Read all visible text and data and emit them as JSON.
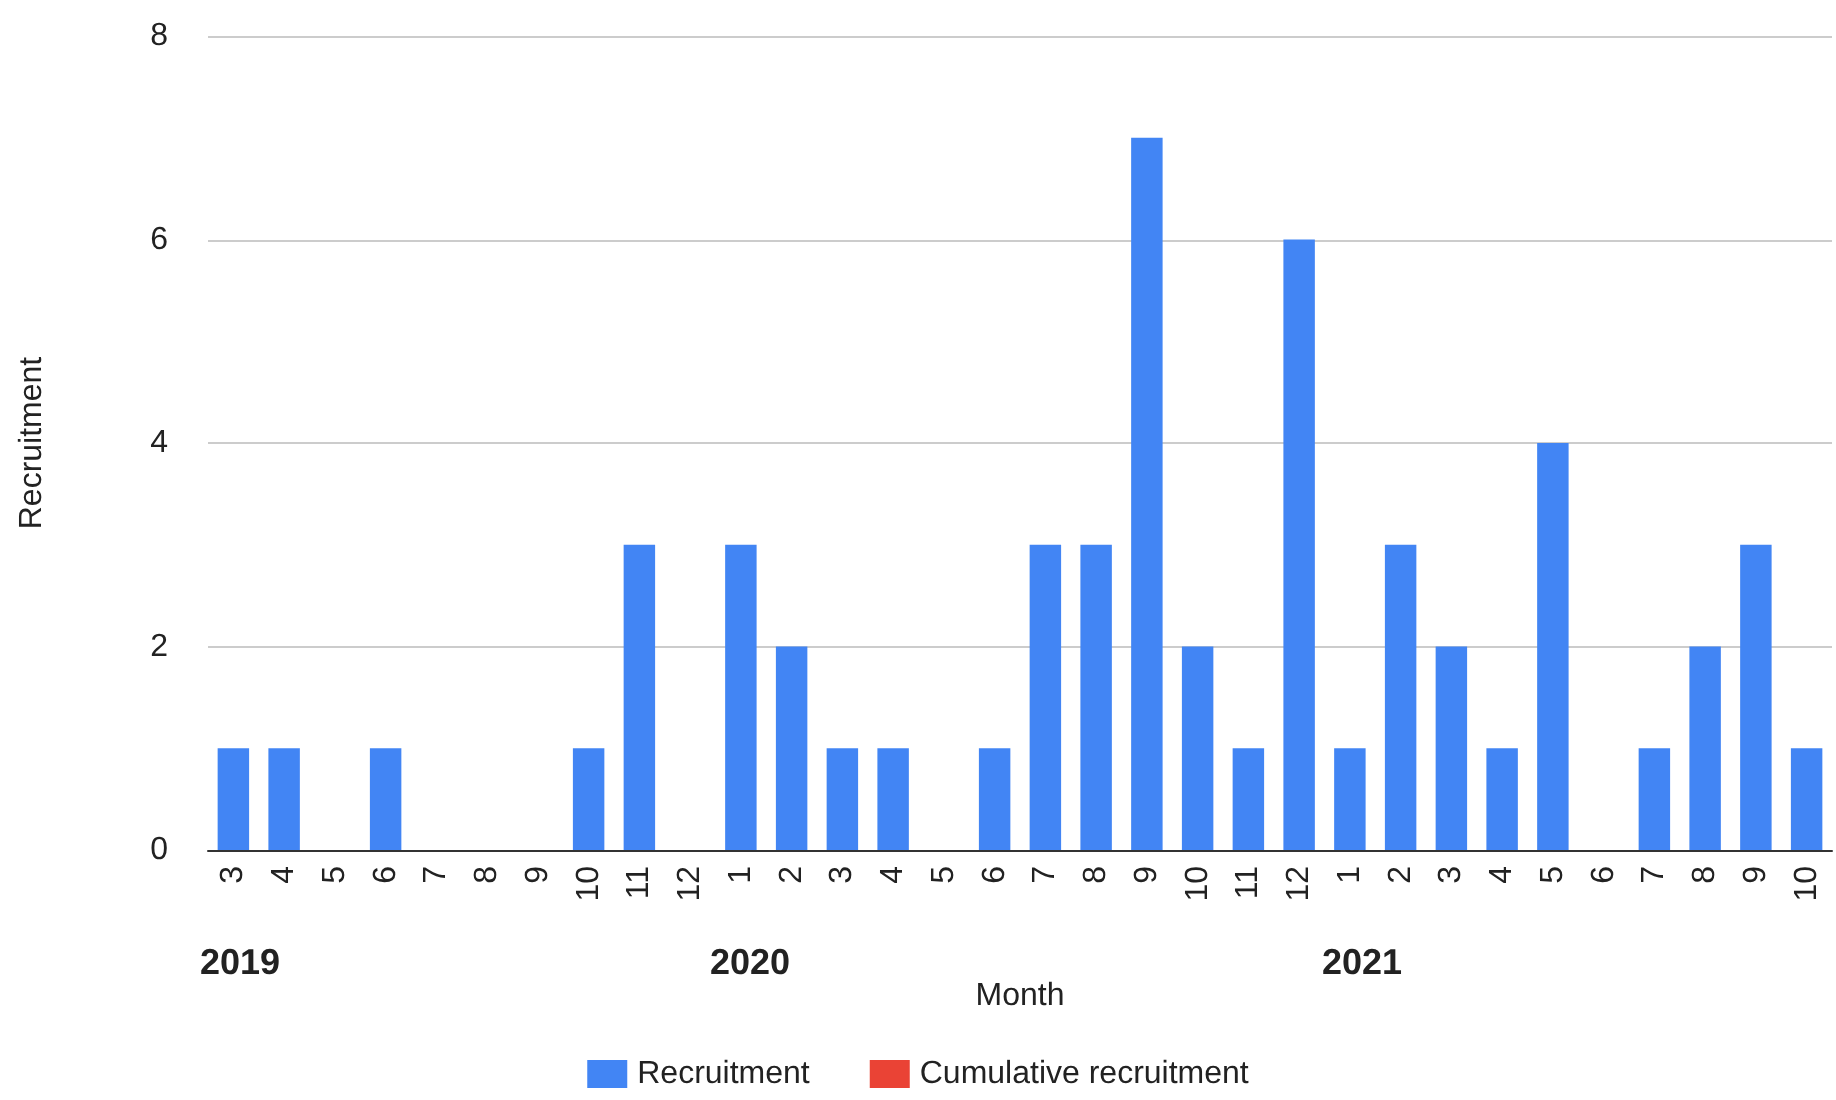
{
  "chart_data": {
    "type": "bar",
    "xlabel": "Month",
    "ylabel": "Recruitment",
    "categories": [
      "3",
      "4",
      "5",
      "6",
      "7",
      "8",
      "9",
      "10",
      "11",
      "12",
      "1",
      "2",
      "3",
      "4",
      "5",
      "6",
      "7",
      "8",
      "9",
      "10",
      "11",
      "12",
      "1",
      "2",
      "3",
      "4",
      "5",
      "6",
      "7",
      "8",
      "9",
      "10"
    ],
    "series": [
      {
        "name": "Recruitment",
        "color": "#4285f4",
        "values": [
          1,
          1,
          0,
          1,
          0,
          0,
          0,
          1,
          3,
          0,
          3,
          2,
          1,
          1,
          0,
          1,
          3,
          3,
          7,
          2,
          1,
          6,
          1,
          3,
          2,
          1,
          4,
          0,
          1,
          2,
          3,
          1
        ]
      },
      {
        "name": "Cumulative recruitment",
        "type": "line",
        "color": "#ea4335",
        "values": [
          null,
          null,
          null,
          null,
          null,
          null,
          null,
          null,
          null,
          null,
          null,
          null,
          null,
          null,
          null,
          null,
          null,
          null,
          null,
          null,
          null,
          null,
          null,
          null,
          null,
          null,
          null,
          null,
          null,
          null,
          null,
          null
        ]
      }
    ],
    "ylim": [
      0,
      8
    ],
    "yticks": [
      0,
      2,
      4,
      6,
      8
    ],
    "grid": "y",
    "legend": "bottom",
    "annotations": [
      "2019",
      "2020",
      "2021"
    ]
  }
}
